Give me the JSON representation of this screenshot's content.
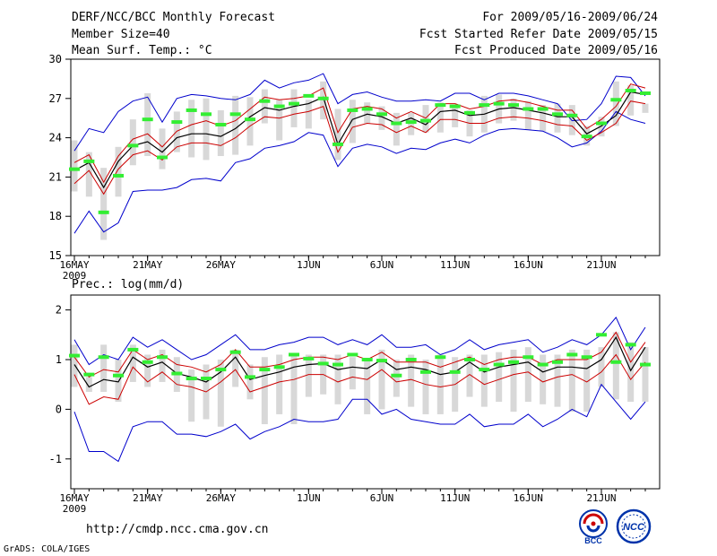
{
  "header": {
    "title": "DERF/NCC/BCC Monthly Forecast",
    "member_size": "Member Size=40",
    "temp_label": "Mean Surf. Temp.: °C",
    "for_range": "For 2009/05/16-2009/06/24",
    "started_refer": "Fcst Started Refer Date 2009/05/15",
    "produced": "Fcst Produced Date 2009/05/16"
  },
  "footer": {
    "url": "http://cmdp.ncc.cma.gov.cn",
    "grads": "GrADS: COLA/IGES",
    "logo_bcc": "BCC",
    "logo_ncc": "NCC"
  },
  "colors": {
    "envelope": "#0000cc",
    "spread": "#cc0000",
    "mean": "#000000",
    "box": "#d8d8d8",
    "marker": "#33ee33"
  },
  "chart_data": [
    {
      "type": "line",
      "title": "Mean Surf. Temp.: °C",
      "ylim": [
        15,
        30
      ],
      "yticks": [
        15,
        18,
        21,
        24,
        27,
        30
      ],
      "xlabel": "",
      "ylabel": "",
      "x_tick_labels": [
        "16MAY",
        "21MAY",
        "26MAY",
        "1JUN",
        "6JUN",
        "11JUN",
        "16JUN",
        "21JUN"
      ],
      "x_tick_days": [
        0,
        5,
        10,
        16,
        21,
        26,
        31,
        36
      ],
      "x_sub_label": "2009",
      "days": 40,
      "series": [
        {
          "name": "max",
          "values": [
            23.0,
            24.7,
            24.4,
            26.0,
            26.8,
            27.1,
            25.2,
            27.0,
            27.3,
            27.2,
            27.0,
            26.9,
            27.3,
            28.4,
            27.8,
            28.2,
            28.4,
            28.9,
            26.6,
            27.3,
            27.5,
            27.1,
            26.8,
            26.8,
            26.9,
            26.8,
            27.4,
            27.4,
            26.9,
            27.4,
            27.4,
            27.2,
            26.9,
            26.6,
            25.3,
            25.4,
            26.6,
            28.7,
            28.6,
            27.2
          ]
        },
        {
          "name": "upper",
          "values": [
            22.1,
            22.7,
            20.6,
            22.6,
            23.9,
            24.3,
            23.3,
            24.5,
            25.0,
            25.3,
            24.9,
            25.3,
            26.2,
            27.1,
            26.9,
            27.0,
            27.2,
            27.8,
            24.4,
            26.2,
            26.4,
            26.2,
            25.5,
            26.0,
            25.5,
            26.6,
            26.6,
            26.2,
            26.4,
            26.8,
            26.9,
            26.7,
            26.4,
            26.1,
            26.1,
            24.7,
            25.4,
            26.4,
            28.1,
            27.8
          ]
        },
        {
          "name": "mean",
          "values": [
            21.5,
            22.1,
            20.2,
            22.2,
            23.4,
            23.7,
            22.9,
            24.0,
            24.3,
            24.3,
            24.1,
            24.7,
            25.6,
            26.3,
            26.1,
            26.4,
            26.6,
            27.1,
            23.5,
            25.4,
            25.8,
            25.6,
            25.1,
            25.5,
            25.0,
            26.0,
            26.1,
            25.7,
            25.8,
            26.2,
            26.3,
            26.1,
            25.9,
            25.6,
            25.6,
            24.3,
            24.9,
            25.7,
            27.5,
            27.3
          ]
        },
        {
          "name": "lower",
          "values": [
            20.5,
            21.5,
            19.7,
            21.6,
            22.7,
            23.0,
            22.3,
            23.3,
            23.6,
            23.6,
            23.4,
            24.0,
            24.9,
            25.6,
            25.5,
            25.8,
            26.0,
            26.4,
            22.9,
            24.8,
            25.1,
            25.0,
            24.4,
            24.9,
            24.4,
            25.4,
            25.4,
            25.1,
            25.1,
            25.5,
            25.6,
            25.5,
            25.3,
            25.0,
            24.9,
            23.8,
            24.4,
            25.1,
            26.8,
            26.6
          ]
        },
        {
          "name": "min",
          "values": [
            16.7,
            18.4,
            16.8,
            17.5,
            19.9,
            20.0,
            20.0,
            20.2,
            20.8,
            20.9,
            20.7,
            22.1,
            22.4,
            23.2,
            23.4,
            23.7,
            24.4,
            24.2,
            21.8,
            23.2,
            23.5,
            23.3,
            22.8,
            23.2,
            23.1,
            23.6,
            23.9,
            23.6,
            24.2,
            24.6,
            24.7,
            24.6,
            24.5,
            24.0,
            23.3,
            23.6,
            24.5,
            26.0,
            25.4,
            25.1
          ]
        },
        {
          "name": "obs_marker",
          "values": [
            21.6,
            22.2,
            18.3,
            21.1,
            23.4,
            25.4,
            22.5,
            25.2,
            26.1,
            25.8,
            25.0,
            25.8,
            25.4,
            26.8,
            26.4,
            26.6,
            27.2,
            27.0,
            23.5,
            26.1,
            26.2,
            25.8,
            25.1,
            25.2,
            25.3,
            26.5,
            26.4,
            25.9,
            26.5,
            26.6,
            26.5,
            26.2,
            26.2,
            25.8,
            25.7,
            24.1,
            25.1,
            26.9,
            27.6,
            27.4
          ]
        },
        {
          "name": "box_high",
          "values": [
            23.8,
            22.9,
            21.7,
            23.3,
            25.4,
            27.4,
            24.7,
            26.0,
            26.9,
            27.0,
            26.1,
            27.2,
            27.1,
            27.7,
            26.9,
            27.7,
            26.9,
            28.3,
            26.2,
            26.9,
            26.7,
            26.4,
            25.9,
            25.9,
            26.5,
            26.7,
            26.4,
            26.1,
            27.2,
            27.3,
            27.0,
            26.8,
            26.5,
            26.6,
            26.5,
            24.9,
            25.6,
            28.3,
            28.0,
            26.6
          ]
        },
        {
          "name": "box_low",
          "values": [
            19.9,
            19.5,
            16.2,
            19.5,
            21.9,
            22.6,
            21.6,
            22.9,
            22.5,
            22.3,
            22.6,
            22.7,
            23.4,
            25.1,
            23.8,
            24.8,
            24.7,
            25.4,
            22.3,
            23.6,
            25.1,
            24.6,
            23.4,
            24.2,
            24.4,
            24.4,
            24.8,
            24.1,
            24.4,
            25.1,
            25.3,
            24.6,
            24.5,
            24.4,
            24.2,
            23.4,
            24.1,
            24.9,
            25.7,
            25.9
          ]
        }
      ]
    },
    {
      "type": "line",
      "title": "Prec.: log(mm/d)",
      "ylim": [
        -1.6,
        2.3
      ],
      "yticks": [
        -1,
        0,
        1,
        2
      ],
      "xlabel": "",
      "ylabel": "",
      "x_tick_labels": [
        "16MAY",
        "21MAY",
        "26MAY",
        "1JUN",
        "6JUN",
        "11JUN",
        "16JUN",
        "21JUN"
      ],
      "x_tick_days": [
        0,
        5,
        10,
        16,
        21,
        26,
        31,
        36
      ],
      "x_sub_label": "2009",
      "days": 40,
      "series": [
        {
          "name": "max",
          "values": [
            1.4,
            0.9,
            1.1,
            1.0,
            1.45,
            1.25,
            1.4,
            1.2,
            1.0,
            1.1,
            1.3,
            1.5,
            1.2,
            1.2,
            1.3,
            1.35,
            1.45,
            1.45,
            1.3,
            1.4,
            1.3,
            1.5,
            1.25,
            1.25,
            1.3,
            1.1,
            1.2,
            1.4,
            1.2,
            1.3,
            1.35,
            1.4,
            1.15,
            1.25,
            1.4,
            1.3,
            1.5,
            1.85,
            1.2,
            1.65
          ]
        },
        {
          "name": "upper",
          "values": [
            1.05,
            0.65,
            0.8,
            0.75,
            1.2,
            1.0,
            1.1,
            0.9,
            0.85,
            0.75,
            0.9,
            1.2,
            0.85,
            0.85,
            0.9,
            1.0,
            1.05,
            1.05,
            1.0,
            1.1,
            1.0,
            1.15,
            0.95,
            0.95,
            0.95,
            0.85,
            0.95,
            1.05,
            0.9,
            1.0,
            1.05,
            1.05,
            0.9,
            1.0,
            1.0,
            1.0,
            1.15,
            1.55,
            0.95,
            1.35
          ]
        },
        {
          "name": "mean",
          "values": [
            0.9,
            0.45,
            0.6,
            0.55,
            1.05,
            0.85,
            0.95,
            0.72,
            0.65,
            0.55,
            0.75,
            1.05,
            0.6,
            0.68,
            0.75,
            0.85,
            0.9,
            0.92,
            0.8,
            0.85,
            0.82,
            1.0,
            0.8,
            0.85,
            0.8,
            0.7,
            0.75,
            0.95,
            0.75,
            0.85,
            0.9,
            0.95,
            0.75,
            0.85,
            0.85,
            0.82,
            1.0,
            1.45,
            0.78,
            1.25
          ]
        },
        {
          "name": "lower",
          "values": [
            0.7,
            0.1,
            0.25,
            0.2,
            0.85,
            0.55,
            0.75,
            0.5,
            0.45,
            0.35,
            0.55,
            0.8,
            0.35,
            0.45,
            0.55,
            0.6,
            0.7,
            0.7,
            0.55,
            0.65,
            0.6,
            0.8,
            0.55,
            0.6,
            0.5,
            0.45,
            0.5,
            0.7,
            0.5,
            0.6,
            0.7,
            0.75,
            0.55,
            0.65,
            0.7,
            0.55,
            0.75,
            1.1,
            0.6,
            0.95
          ]
        },
        {
          "name": "min",
          "values": [
            -0.05,
            -0.85,
            -0.85,
            -1.05,
            -0.35,
            -0.25,
            -0.25,
            -0.5,
            -0.5,
            -0.55,
            -0.45,
            -0.3,
            -0.6,
            -0.45,
            -0.35,
            -0.2,
            -0.25,
            -0.25,
            -0.2,
            0.2,
            0.2,
            -0.1,
            0.0,
            -0.2,
            -0.25,
            -0.3,
            -0.3,
            -0.1,
            -0.35,
            -0.3,
            -0.3,
            -0.1,
            -0.35,
            -0.2,
            0.0,
            -0.15,
            0.5,
            0.15,
            -0.2,
            0.15
          ]
        },
        {
          "name": "obs_marker",
          "values": [
            1.08,
            0.7,
            1.05,
            0.68,
            1.2,
            0.95,
            1.05,
            0.72,
            0.62,
            0.62,
            0.8,
            1.15,
            0.65,
            0.8,
            0.85,
            1.1,
            1.02,
            0.92,
            0.9,
            1.1,
            1.0,
            0.98,
            0.68,
            1.0,
            0.75,
            1.05,
            0.75,
            1.0,
            0.8,
            0.9,
            0.95,
            1.05,
            0.9,
            0.95,
            1.1,
            1.05,
            1.5,
            0.95,
            1.3,
            0.9
          ]
        },
        {
          "name": "box_high",
          "values": [
            1.3,
            0.65,
            1.3,
            1.0,
            1.3,
            1.1,
            1.2,
            1.05,
            0.8,
            0.9,
            1.0,
            1.2,
            0.9,
            1.05,
            1.1,
            1.1,
            1.1,
            1.1,
            1.1,
            1.05,
            1.0,
            1.2,
            1.0,
            1.1,
            1.0,
            1.1,
            1.05,
            1.1,
            1.1,
            1.15,
            1.2,
            1.25,
            1.1,
            1.1,
            1.2,
            1.2,
            1.25,
            1.55,
            1.35,
            1.25
          ]
        },
        {
          "name": "box_low",
          "values": [
            0.45,
            0.35,
            0.35,
            0.15,
            0.55,
            0.45,
            0.55,
            0.35,
            -0.25,
            -0.2,
            -0.35,
            0.45,
            0.2,
            -0.3,
            -0.1,
            -0.3,
            0.25,
            0.3,
            0.1,
            0.4,
            -0.1,
            0.0,
            0.25,
            0.05,
            -0.1,
            -0.1,
            -0.05,
            0.25,
            0.05,
            0.15,
            -0.05,
            0.15,
            0.1,
            0.05,
            -0.05,
            -0.05,
            0.45,
            0.2,
            0.15,
            0.15
          ]
        }
      ]
    }
  ]
}
